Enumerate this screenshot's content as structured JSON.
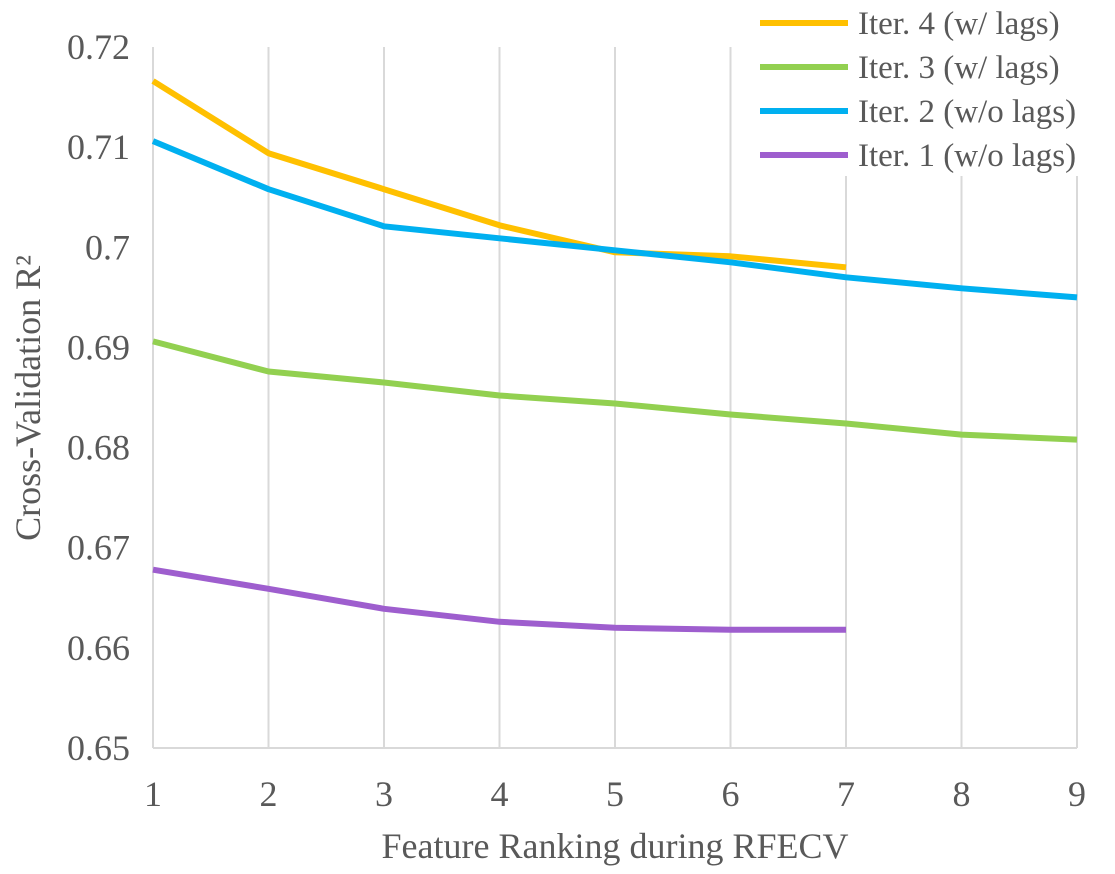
{
  "chart_data": {
    "type": "line",
    "x": [
      1,
      2,
      3,
      4,
      5,
      6,
      7,
      8,
      9
    ],
    "xlabel": "Feature Ranking during RFECV",
    "ylabel": "Cross-Validation R²",
    "ylim": [
      0.65,
      0.72
    ],
    "xlim": [
      1,
      9
    ],
    "yticks": [
      "0.65",
      "0.66",
      "0.67",
      "0.68",
      "0.69",
      "0.7",
      "0.71",
      "0.72"
    ],
    "xticks": [
      "1",
      "2",
      "3",
      "4",
      "5",
      "6",
      "7",
      "8",
      "9"
    ],
    "grid": "vertical",
    "legend_position": "top-right",
    "series": [
      {
        "name": "Iter. 4 (w/ lags)",
        "color": "#FFC000",
        "x": [
          1,
          2,
          3,
          4,
          5,
          6,
          7
        ],
        "values": [
          0.7166,
          0.7094,
          0.7058,
          0.7022,
          0.6995,
          0.6991,
          0.698
        ]
      },
      {
        "name": "Iter. 3 (w/ lags)",
        "color": "#92D050",
        "x": [
          1,
          2,
          3,
          4,
          5,
          6,
          7,
          8,
          9
        ],
        "values": [
          0.6906,
          0.6876,
          0.6865,
          0.6852,
          0.6844,
          0.6833,
          0.6824,
          0.6813,
          0.6808
        ]
      },
      {
        "name": "Iter. 2 (w/o lags)",
        "color": "#00B0F0",
        "x": [
          1,
          2,
          3,
          4,
          5,
          6,
          7,
          8,
          9
        ],
        "values": [
          0.7106,
          0.7058,
          0.7021,
          0.7009,
          0.6997,
          0.6985,
          0.697,
          0.6959,
          0.695
        ]
      },
      {
        "name": "Iter. 1 (w/o lags)",
        "color": "#9E5ECE",
        "x": [
          1,
          2,
          3,
          4,
          5,
          6,
          7
        ],
        "values": [
          0.6678,
          0.6659,
          0.6639,
          0.6626,
          0.662,
          0.6618,
          0.6618
        ]
      }
    ]
  }
}
